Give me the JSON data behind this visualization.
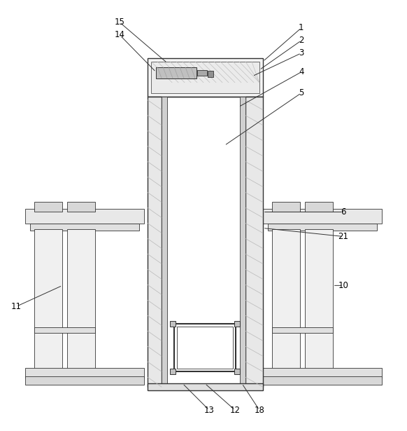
{
  "bg_color": "#ffffff",
  "lc": "#333333",
  "fc_white": "#ffffff",
  "fc_light": "#f0f0f0",
  "fc_mid": "#e0e0e0",
  "fc_dark": "#c8c8c8",
  "fc_gray": "#d8d8d8"
}
